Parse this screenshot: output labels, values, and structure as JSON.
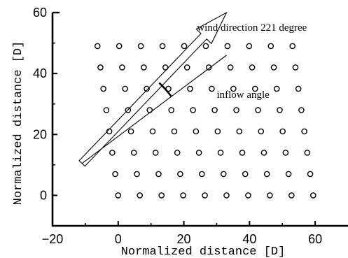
{
  "chart_data": {
    "type": "scatter",
    "title": "",
    "xlabel": "Normalized distance [D]",
    "ylabel": "Normalized distance [D]",
    "xlim": [
      -20,
      70
    ],
    "ylim": [
      -10,
      60
    ],
    "xticks": [
      -20,
      0,
      20,
      40,
      60
    ],
    "yticks": [
      0,
      20,
      40,
      60
    ],
    "xtick_labels": [
      "−20",
      "0",
      "20",
      "40",
      "60"
    ],
    "ytick_labels": [
      "0",
      "20",
      "40",
      "60"
    ],
    "grid": false,
    "series": [
      {
        "marker": "open-circle",
        "points": [
          [
            0.0,
            0.0
          ],
          [
            6.6,
            0.0
          ],
          [
            13.2,
            0.0
          ],
          [
            19.8,
            0.0
          ],
          [
            26.4,
            0.0
          ],
          [
            33.0,
            0.0
          ],
          [
            39.6,
            0.0
          ],
          [
            46.2,
            0.0
          ],
          [
            52.8,
            0.0
          ],
          [
            59.4,
            0.0
          ],
          [
            -0.9,
            7.0
          ],
          [
            5.7,
            7.0
          ],
          [
            12.3,
            7.0
          ],
          [
            18.9,
            7.0
          ],
          [
            25.5,
            7.0
          ],
          [
            32.1,
            7.0
          ],
          [
            38.7,
            7.0
          ],
          [
            45.3,
            7.0
          ],
          [
            51.9,
            7.0
          ],
          [
            58.5,
            7.0
          ],
          [
            -1.8,
            14.0
          ],
          [
            4.8,
            14.0
          ],
          [
            11.4,
            14.0
          ],
          [
            18.0,
            14.0
          ],
          [
            24.6,
            14.0
          ],
          [
            31.2,
            14.0
          ],
          [
            37.8,
            14.0
          ],
          [
            44.4,
            14.0
          ],
          [
            51.0,
            14.0
          ],
          [
            57.6,
            14.0
          ],
          [
            -2.7,
            21.0
          ],
          [
            3.9,
            21.0
          ],
          [
            10.5,
            21.0
          ],
          [
            17.1,
            21.0
          ],
          [
            23.7,
            21.0
          ],
          [
            30.3,
            21.0
          ],
          [
            36.9,
            21.0
          ],
          [
            43.5,
            21.0
          ],
          [
            50.1,
            21.0
          ],
          [
            56.7,
            21.0
          ],
          [
            -3.6,
            28.0
          ],
          [
            3.0,
            28.0
          ],
          [
            9.6,
            28.0
          ],
          [
            16.2,
            28.0
          ],
          [
            22.8,
            28.0
          ],
          [
            29.4,
            28.0
          ],
          [
            36.0,
            28.0
          ],
          [
            42.6,
            28.0
          ],
          [
            49.2,
            28.0
          ],
          [
            55.8,
            28.0
          ],
          [
            -4.5,
            35.0
          ],
          [
            2.1,
            35.0
          ],
          [
            8.7,
            35.0
          ],
          [
            15.3,
            35.0
          ],
          [
            21.9,
            35.0
          ],
          [
            28.5,
            35.0
          ],
          [
            35.1,
            35.0
          ],
          [
            41.7,
            35.0
          ],
          [
            48.3,
            35.0
          ],
          [
            54.9,
            35.0
          ],
          [
            -5.4,
            42.0
          ],
          [
            1.2,
            42.0
          ],
          [
            7.8,
            42.0
          ],
          [
            14.4,
            42.0
          ],
          [
            21.0,
            42.0
          ],
          [
            27.6,
            42.0
          ],
          [
            34.2,
            42.0
          ],
          [
            40.8,
            42.0
          ],
          [
            47.4,
            42.0
          ],
          [
            54.0,
            42.0
          ],
          [
            -6.3,
            49.0
          ],
          [
            0.3,
            49.0
          ],
          [
            6.9,
            49.0
          ],
          [
            13.5,
            49.0
          ],
          [
            20.1,
            49.0
          ],
          [
            26.7,
            49.0
          ],
          [
            33.3,
            49.0
          ],
          [
            39.9,
            49.0
          ],
          [
            46.5,
            49.0
          ],
          [
            53.1,
            49.0
          ]
        ]
      }
    ],
    "wind_arrow": {
      "tail": [
        -11,
        10.5
      ],
      "head": [
        33,
        60
      ],
      "half_width": 1.2,
      "head_half_width": 3.2,
      "head_length": 10
    },
    "inflow_line": {
      "from": [
        -11,
        10.5
      ],
      "to": [
        33,
        46
      ]
    },
    "inflow_arc": {
      "center": [
        -11,
        10.5
      ],
      "radius": 34
    },
    "annotations": [
      {
        "text": "wind direction 221 degree",
        "x": 24,
        "y": 54
      },
      {
        "text": "inflow angle",
        "x": 30,
        "y": 32
      }
    ]
  }
}
